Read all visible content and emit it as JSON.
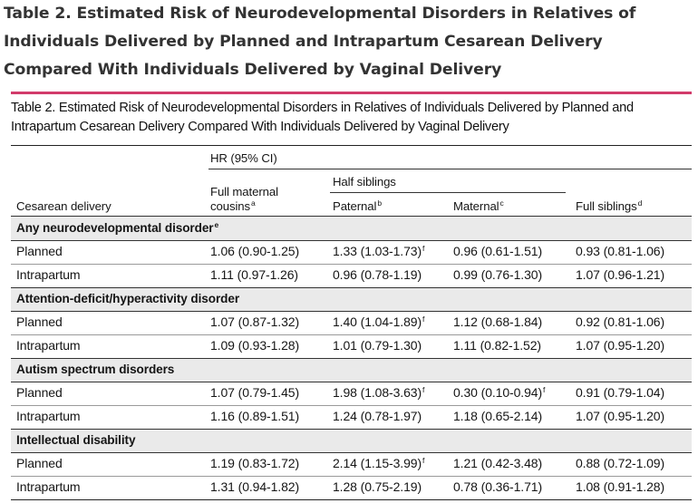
{
  "page_title": "Table 2.  Estimated Risk of Neurodevelopmental Disorders in Relatives of Individuals Delivered by Planned and Intrapartum Cesarean Delivery Compared With Individuals Delivered by Vaginal Delivery",
  "table": {
    "caption": "Table 2. Estimated Risk of Neurodevelopmental Disorders in Relatives of Individuals Delivered by Planned and Intrapartum Cesarean Delivery Compared With Individuals Delivered by Vaginal Delivery",
    "headers": {
      "hr_group": "HR (95% CI)",
      "half_siblings": "Half siblings",
      "row_label": "Cesarean delivery",
      "cousins_line1": "Full maternal",
      "cousins_line2": "cousins",
      "cousins_sup": "a",
      "paternal": "Paternal",
      "paternal_sup": "b",
      "maternal": "Maternal",
      "maternal_sup": "c",
      "full_siblings": "Full siblings",
      "full_siblings_sup": "d"
    },
    "sections": [
      {
        "title": "Any neurodevelopmental disorder",
        "title_sup": "e",
        "rows": [
          {
            "label": "Planned",
            "cousins": "1.06 (0.90-1.25)",
            "paternal": "1.33 (1.03-1.73)",
            "paternal_sup": "f",
            "maternal": "0.96 (0.61-1.51)",
            "maternal_sup": "",
            "full": "0.93 (0.81-1.06)"
          },
          {
            "label": "Intrapartum",
            "cousins": "1.11 (0.97-1.26)",
            "paternal": "0.96 (0.78-1.19)",
            "paternal_sup": "",
            "maternal": "0.99 (0.76-1.30)",
            "maternal_sup": "",
            "full": "1.07 (0.96-1.21)"
          }
        ]
      },
      {
        "title": "Attention-deficit/hyperactivity disorder",
        "title_sup": "",
        "rows": [
          {
            "label": "Planned",
            "cousins": "1.07 (0.87-1.32)",
            "paternal": "1.40 (1.04-1.89)",
            "paternal_sup": "f",
            "maternal": "1.12 (0.68-1.84)",
            "maternal_sup": "",
            "full": "0.92 (0.81-1.06)"
          },
          {
            "label": "Intrapartum",
            "cousins": "1.09 (0.93-1.28)",
            "paternal": "1.01 (0.79-1.30)",
            "paternal_sup": "",
            "maternal": "1.11 (0.82-1.52)",
            "maternal_sup": "",
            "full": "1.07 (0.95-1.20)"
          }
        ]
      },
      {
        "title": "Autism spectrum disorders",
        "title_sup": "",
        "rows": [
          {
            "label": "Planned",
            "cousins": "1.07 (0.79-1.45)",
            "paternal": "1.98 (1.08-3.63)",
            "paternal_sup": "f",
            "maternal": "0.30 (0.10-0.94)",
            "maternal_sup": "f",
            "full": "0.91 (0.79-1.04)"
          },
          {
            "label": "Intrapartum",
            "cousins": "1.16 (0.89-1.51)",
            "paternal": "1.24 (0.78-1.97)",
            "paternal_sup": "",
            "maternal": "1.18 (0.65-2.14)",
            "maternal_sup": "",
            "full": "1.07 (0.95-1.20)"
          }
        ]
      },
      {
        "title": "Intellectual disability",
        "title_sup": "",
        "rows": [
          {
            "label": "Planned",
            "cousins": "1.19 (0.83-1.72)",
            "paternal": "2.14 (1.15-3.99)",
            "paternal_sup": "f",
            "maternal": "1.21 (0.42-3.48)",
            "maternal_sup": "",
            "full": "0.88 (0.72-1.09)"
          },
          {
            "label": "Intrapartum",
            "cousins": "1.31 (0.94-1.82)",
            "paternal": "1.28 (0.75-2.19)",
            "paternal_sup": "",
            "maternal": "0.78 (0.36-1.71)",
            "maternal_sup": "",
            "full": "1.08 (0.91-1.28)"
          }
        ]
      }
    ]
  }
}
